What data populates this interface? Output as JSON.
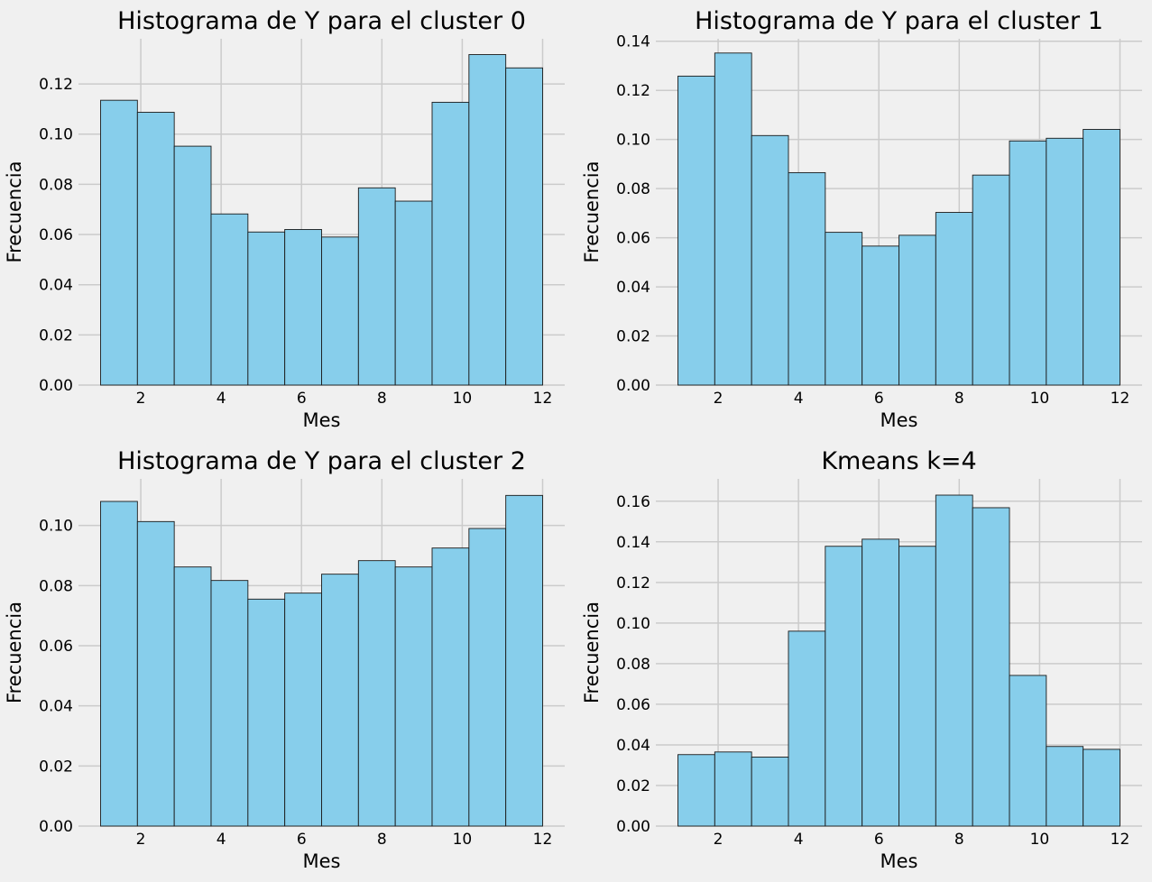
{
  "chart_data": [
    {
      "type": "bar",
      "title": "Histograma de Y para el cluster 0",
      "xlabel": "Mes",
      "ylabel": "Frecuencia",
      "xlim": [
        0.45,
        12.55
      ],
      "ylim": [
        0,
        0.138
      ],
      "xticks": [
        2,
        4,
        6,
        8,
        10,
        12
      ],
      "xtick_labels": [
        "2",
        "4",
        "6",
        "8",
        "10",
        "12"
      ],
      "yticks": [
        0,
        0.02,
        0.04,
        0.06,
        0.08,
        0.1,
        0.12
      ],
      "ytick_labels": [
        "0.00",
        "0.02",
        "0.04",
        "0.06",
        "0.08",
        "0.10",
        "0.12"
      ],
      "bin_edges": [
        1,
        1.9167,
        2.8333,
        3.75,
        4.6667,
        5.5833,
        6.5,
        7.4167,
        8.3333,
        9.25,
        10.1667,
        11.0833,
        12
      ],
      "values": [
        0.1135,
        0.1087,
        0.0952,
        0.0682,
        0.061,
        0.062,
        0.059,
        0.0786,
        0.0733,
        0.1127,
        0.1317,
        0.1264
      ],
      "grid": true
    },
    {
      "type": "bar",
      "title": "Histograma de Y para el cluster 1",
      "xlabel": "Mes",
      "ylabel": "Frecuencia",
      "xlim": [
        0.45,
        12.55
      ],
      "ylim": [
        0,
        0.141
      ],
      "xticks": [
        2,
        4,
        6,
        8,
        10,
        12
      ],
      "xtick_labels": [
        "2",
        "4",
        "6",
        "8",
        "10",
        "12"
      ],
      "yticks": [
        0,
        0.02,
        0.04,
        0.06,
        0.08,
        0.1,
        0.12,
        0.14
      ],
      "ytick_labels": [
        "0.00",
        "0.02",
        "0.04",
        "0.06",
        "0.08",
        "0.10",
        "0.12",
        "0.14"
      ],
      "bin_edges": [
        1,
        1.9167,
        2.8333,
        3.75,
        4.6667,
        5.5833,
        6.5,
        7.4167,
        8.3333,
        9.25,
        10.1667,
        11.0833,
        12
      ],
      "values": [
        0.1258,
        0.1352,
        0.1016,
        0.0865,
        0.0622,
        0.0566,
        0.061,
        0.0703,
        0.0855,
        0.0994,
        0.1005,
        0.1041
      ],
      "grid": true
    },
    {
      "type": "bar",
      "title": "Histograma de Y para el cluster 2",
      "xlabel": "Mes",
      "ylabel": "Frecuencia",
      "xlim": [
        0.45,
        12.55
      ],
      "ylim": [
        0,
        0.1155
      ],
      "xticks": [
        2,
        4,
        6,
        8,
        10,
        12
      ],
      "xtick_labels": [
        "2",
        "4",
        "6",
        "8",
        "10",
        "12"
      ],
      "yticks": [
        0,
        0.02,
        0.04,
        0.06,
        0.08,
        0.1
      ],
      "ytick_labels": [
        "0.00",
        "0.02",
        "0.04",
        "0.06",
        "0.08",
        "0.10"
      ],
      "bin_edges": [
        1,
        1.9167,
        2.8333,
        3.75,
        4.6667,
        5.5833,
        6.5,
        7.4167,
        8.3333,
        9.25,
        10.1667,
        11.0833,
        12
      ],
      "values": [
        0.108,
        0.1013,
        0.0862,
        0.0817,
        0.0755,
        0.0775,
        0.0838,
        0.0883,
        0.0862,
        0.0925,
        0.099,
        0.11
      ],
      "grid": true
    },
    {
      "type": "bar",
      "title": "Kmeans k=4",
      "xlabel": "Mes",
      "ylabel": "Frecuencia",
      "xlim": [
        0.45,
        12.55
      ],
      "ylim": [
        0,
        0.171
      ],
      "xticks": [
        2,
        4,
        6,
        8,
        10,
        12
      ],
      "xtick_labels": [
        "2",
        "4",
        "6",
        "8",
        "10",
        "12"
      ],
      "yticks": [
        0,
        0.02,
        0.04,
        0.06,
        0.08,
        0.1,
        0.12,
        0.14,
        0.16
      ],
      "ytick_labels": [
        "0.00",
        "0.02",
        "0.04",
        "0.06",
        "0.08",
        "0.10",
        "0.12",
        "0.14",
        "0.16"
      ],
      "bin_edges": [
        1,
        1.9167,
        2.8333,
        3.75,
        4.6667,
        5.5833,
        6.5,
        7.4167,
        8.3333,
        9.25,
        10.1667,
        11.0833,
        12
      ],
      "values": [
        0.0352,
        0.0365,
        0.034,
        0.096,
        0.1378,
        0.1413,
        0.1378,
        0.163,
        0.1568,
        0.0742,
        0.0392,
        0.0378
      ],
      "grid": true
    }
  ],
  "colors": {
    "figure_background": "#f0f0f0",
    "bar_fill": "#87ceeb",
    "bar_edge": "#1a1a1a",
    "grid": "#cbcbcb"
  }
}
